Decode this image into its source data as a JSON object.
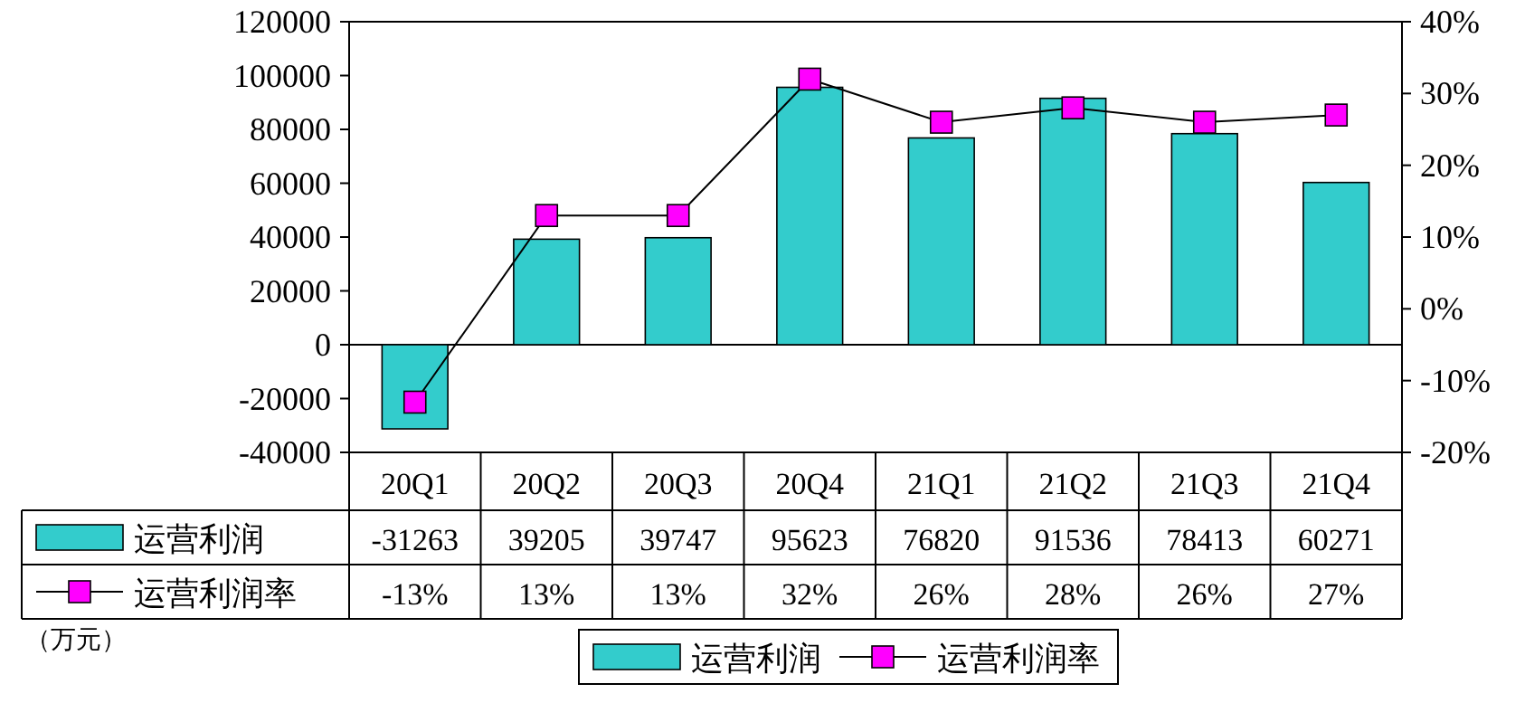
{
  "chart_data": {
    "type": "bar",
    "categories": [
      "20Q1",
      "20Q2",
      "20Q3",
      "20Q4",
      "21Q1",
      "21Q2",
      "21Q3",
      "21Q4"
    ],
    "series": [
      {
        "name": "运营利润",
        "color": "#33cccc",
        "values": [
          -31263,
          39205,
          39747,
          95623,
          76820,
          91536,
          78413,
          60271
        ],
        "value_labels": [
          "-31263",
          "39205",
          "39747",
          "95623",
          "76820",
          "91536",
          "78413",
          "60271"
        ]
      },
      {
        "name": "运营利润率",
        "type": "line",
        "axis": "y2",
        "color": "#ff00ff",
        "values": [
          -13,
          13,
          13,
          32,
          26,
          28,
          26,
          27
        ],
        "value_labels": [
          "-13%",
          "13%",
          "13%",
          "32%",
          "26%",
          "28%",
          "26%",
          "27%"
        ]
      }
    ],
    "ylim": [
      -40000,
      120000
    ],
    "yticks": [
      -40000,
      -20000,
      0,
      20000,
      40000,
      60000,
      80000,
      100000,
      120000
    ],
    "y2lim": [
      -20,
      40
    ],
    "y2ticks": [
      {
        "value": -20,
        "label": "-20%"
      },
      {
        "value": -10,
        "label": "-10%"
      },
      {
        "value": 0,
        "label": "0%"
      },
      {
        "value": 10,
        "label": "10%"
      },
      {
        "value": 20,
        "label": "20%"
      },
      {
        "value": 30,
        "label": "30%"
      },
      {
        "value": 40,
        "label": "40%"
      }
    ],
    "marker": "square",
    "legend": "bottom",
    "annotations": [
      "（万元）"
    ]
  }
}
